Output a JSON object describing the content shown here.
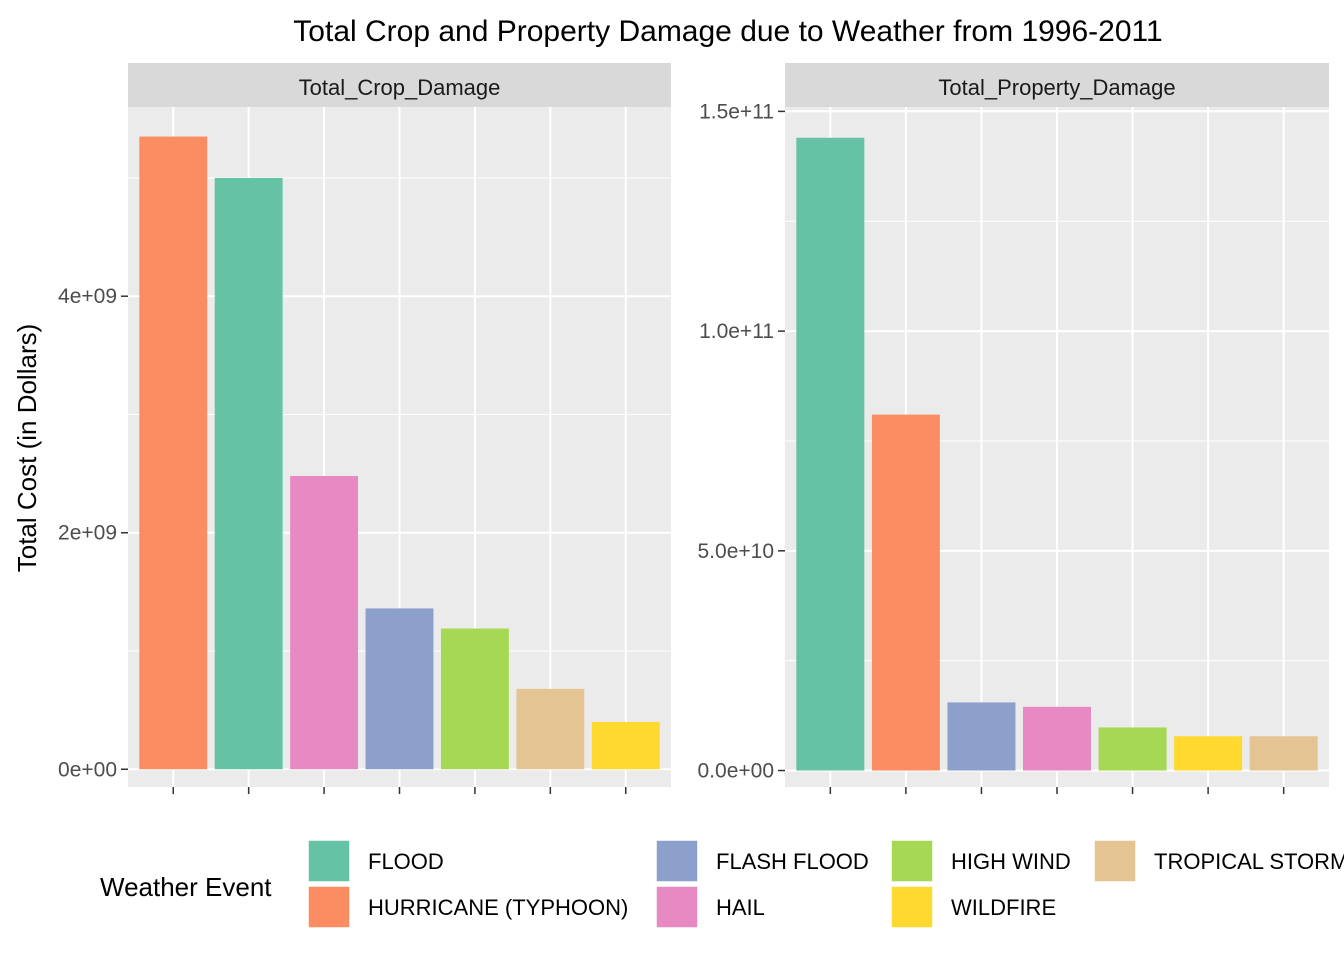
{
  "chart_data": {
    "type": "bar",
    "title": "Total Crop and Property Damage due to Weather from 1996-2011",
    "ylabel": "Total Cost (in Dollars)",
    "legend_title": "Weather Event",
    "legend_position": "bottom",
    "grid": true,
    "colors": {
      "FLOOD": "#66C2A5",
      "HURRICANE (TYPHOON)": "#FC8D62",
      "FLASH FLOOD": "#8DA0CB",
      "HAIL": "#E78AC3",
      "HIGH WIND": "#A6D854",
      "WILDFIRE": "#FFD92F",
      "TROPICAL STORM": "#E5C494"
    },
    "legend": [
      "FLOOD",
      "HURRICANE (TYPHOON)",
      "FLASH FLOOD",
      "HAIL",
      "HIGH WIND",
      "WILDFIRE",
      "TROPICAL STORM"
    ],
    "facets": [
      {
        "strip": "Total_Crop_Damage",
        "ylim": [
          -150000000,
          5600000000
        ],
        "ticks": [
          0,
          2000000000,
          4000000000
        ],
        "tick_labels": [
          "0e+00",
          "2e+09",
          "4e+09"
        ],
        "minor_ticks": [
          1000000000,
          3000000000,
          5000000000
        ],
        "categories": [
          "HURRICANE (TYPHOON)",
          "FLOOD",
          "HAIL",
          "FLASH FLOOD",
          "HIGH WIND",
          "TROPICAL STORM",
          "WILDFIRE"
        ],
        "values": [
          5350000000,
          5000000000,
          2480000000,
          1360000000,
          1190000000,
          680000000,
          400000000
        ]
      },
      {
        "strip": "Total_Property_Damage",
        "ylim": [
          -3750000000,
          151000000000
        ],
        "ticks": [
          0,
          50000000000,
          100000000000,
          150000000000
        ],
        "tick_labels": [
          "0.0e+00",
          "5.0e+10",
          "1.0e+11",
          "1.5e+11"
        ],
        "minor_ticks": [
          25000000000,
          75000000000,
          125000000000
        ],
        "categories": [
          "FLOOD",
          "HURRICANE (TYPHOON)",
          "FLASH FLOOD",
          "HAIL",
          "HIGH WIND",
          "WILDFIRE",
          "TROPICAL STORM"
        ],
        "values": [
          144000000000,
          81000000000,
          15500000000,
          14500000000,
          9800000000,
          7800000000,
          7800000000
        ]
      }
    ]
  }
}
